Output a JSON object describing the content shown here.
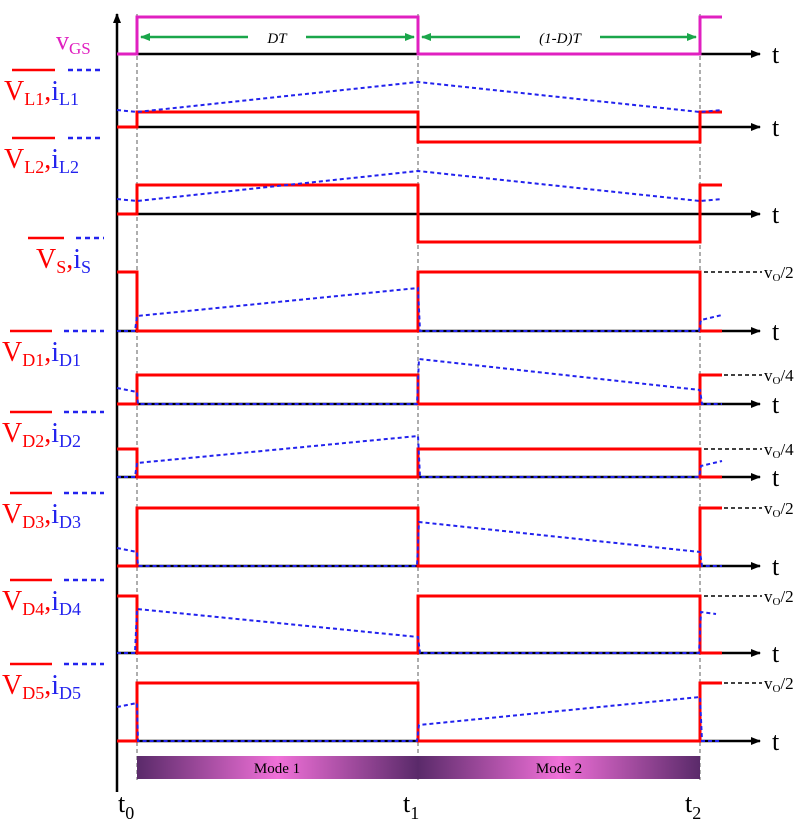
{
  "signals": [
    {
      "id": "vgs",
      "main": "v",
      "sub": "GS",
      "color": "#e020c0"
    },
    {
      "id": "l1",
      "main": "V",
      "sub": "L1",
      "main2": "i",
      "sub2": "L1"
    },
    {
      "id": "l2",
      "main": "V",
      "sub": "L2",
      "main2": "i",
      "sub2": "L2"
    },
    {
      "id": "s",
      "main": "V",
      "sub": "S",
      "main2": "i",
      "sub2": "S"
    },
    {
      "id": "d1",
      "main": "V",
      "sub": "D1",
      "main2": "i",
      "sub2": "D1"
    },
    {
      "id": "d2",
      "main": "V",
      "sub": "D2",
      "main2": "i",
      "sub2": "D2"
    },
    {
      "id": "d3",
      "main": "V",
      "sub": "D3",
      "main2": "i",
      "sub2": "D3"
    },
    {
      "id": "d4",
      "main": "V",
      "sub": "D4",
      "main2": "i",
      "sub2": "D4"
    },
    {
      "id": "d5",
      "main": "V",
      "sub": "D5",
      "main2": "i",
      "sub2": "D5"
    }
  ],
  "axis_label": "t",
  "intervals": {
    "first": "DT",
    "second": "(1-D)T"
  },
  "time_marks": [
    {
      "main": "t",
      "sub": "0"
    },
    {
      "main": "t",
      "sub": "1"
    },
    {
      "main": "t",
      "sub": "2"
    }
  ],
  "levels": {
    "s": {
      "main": "v",
      "sub": "O",
      "frac": "/2"
    },
    "d1": {
      "main": "v",
      "sub": "O",
      "frac": "/4"
    },
    "d2": {
      "main": "v",
      "sub": "O",
      "frac": "/4"
    },
    "d3": {
      "main": "v",
      "sub": "O",
      "frac": "/2"
    },
    "d4": {
      "main": "v",
      "sub": "O",
      "frac": "/2"
    },
    "d5": {
      "main": "v",
      "sub": "O",
      "frac": "/2"
    }
  },
  "modes": [
    "Mode 1",
    "Mode 2"
  ],
  "colors": {
    "voltage": "#ff0000",
    "current": "#2222ee",
    "gate": "#e020c0",
    "arrow": "#1aa64a",
    "mode_dark": "#5a2a6a",
    "mode_light": "#f070d8"
  }
}
